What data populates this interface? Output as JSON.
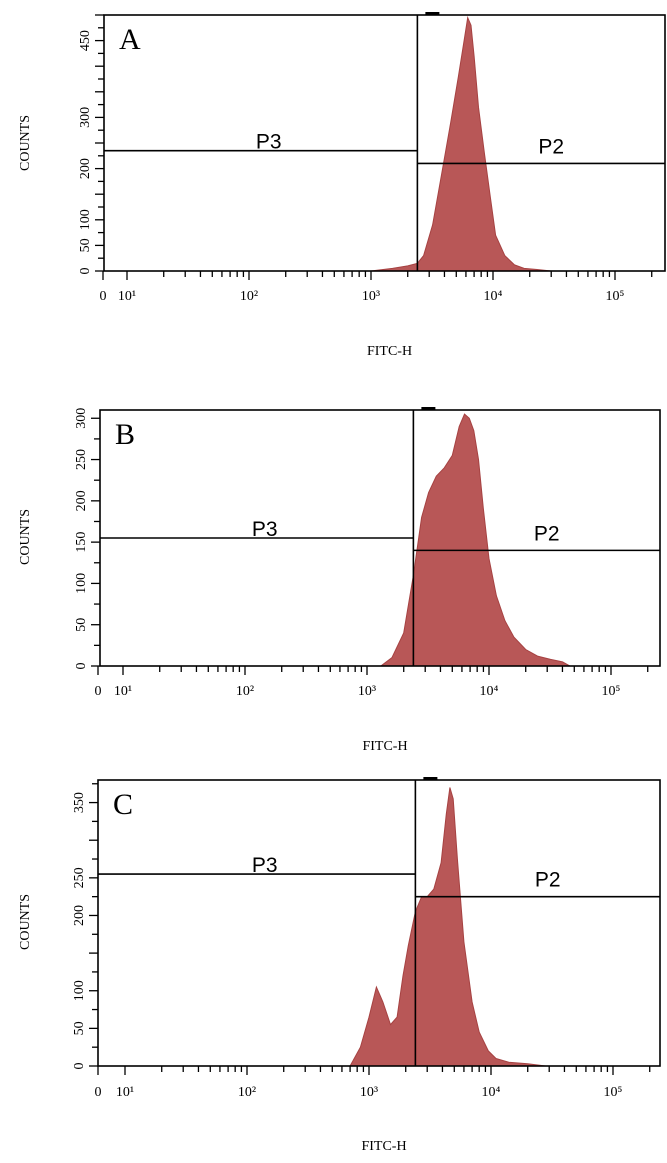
{
  "chart_data": [
    {
      "type": "area",
      "panel_letter": "A",
      "xlabel": "FITC-H",
      "ylabel": "COUNTS",
      "x_scale": "log",
      "x_tick_labels": [
        "0",
        "10¹",
        "10²",
        "10³",
        "10⁴",
        "10⁵"
      ],
      "y_tick_labels": [
        "0",
        "50",
        "100",
        "200",
        "300",
        "450"
      ],
      "ylim": [
        0,
        500
      ],
      "fill_color": "#b85757",
      "gates": [
        {
          "name": "P3",
          "level": 235
        },
        {
          "name": "P2",
          "level": 210
        }
      ],
      "gate_boundary": 2400,
      "histogram": {
        "x": [
          1000,
          1500,
          2000,
          2400,
          2700,
          3200,
          3800,
          4500,
          5200,
          5800,
          6200,
          6600,
          7000,
          7600,
          8500,
          9500,
          10500,
          12500,
          15000,
          18000,
          23000,
          30000
        ],
        "y": [
          0,
          5,
          10,
          15,
          30,
          90,
          190,
          290,
          380,
          450,
          495,
          480,
          420,
          320,
          230,
          145,
          70,
          30,
          12,
          5,
          3,
          0
        ]
      }
    },
    {
      "type": "area",
      "panel_letter": "B",
      "xlabel": "FITC-H",
      "ylabel": "COUNTS",
      "x_scale": "log",
      "x_tick_labels": [
        "0",
        "10¹",
        "10²",
        "10³",
        "10⁴",
        "10⁵"
      ],
      "y_tick_labels": [
        "0",
        "50",
        "100",
        "150",
        "200",
        "250",
        "300"
      ],
      "ylim": [
        0,
        310
      ],
      "fill_color": "#b85757",
      "gates": [
        {
          "name": "P3",
          "level": 155
        },
        {
          "name": "P2",
          "level": 140
        }
      ],
      "gate_boundary": 2400,
      "histogram": {
        "x": [
          1300,
          1600,
          2000,
          2400,
          2800,
          3200,
          3700,
          4300,
          5000,
          5700,
          6300,
          6900,
          7500,
          8200,
          9000,
          10000,
          11500,
          13500,
          16000,
          20000,
          25000,
          32000,
          40000,
          46000
        ],
        "y": [
          0,
          10,
          40,
          110,
          180,
          210,
          230,
          240,
          255,
          290,
          305,
          300,
          285,
          250,
          190,
          130,
          85,
          55,
          35,
          20,
          12,
          8,
          5,
          0
        ]
      }
    },
    {
      "type": "area",
      "panel_letter": "C",
      "xlabel": "FITC-H",
      "ylabel": "COUNTS",
      "x_scale": "log",
      "x_tick_labels": [
        "0",
        "10¹",
        "10²",
        "10³",
        "10⁴",
        "10⁵"
      ],
      "y_tick_labels": [
        "0",
        "50",
        "100",
        "200",
        "250",
        "350"
      ],
      "ylim": [
        0,
        380
      ],
      "fill_color": "#b85757",
      "gates": [
        {
          "name": "P3",
          "level": 255
        },
        {
          "name": "P2",
          "level": 225
        }
      ],
      "gate_boundary": 2400,
      "histogram": {
        "x": [
          700,
          850,
          1000,
          1150,
          1300,
          1500,
          1700,
          1900,
          2100,
          2400,
          2700,
          3000,
          3400,
          3900,
          4300,
          4600,
          4900,
          5300,
          6000,
          7000,
          8000,
          9500,
          11000,
          14000,
          20000,
          28000
        ],
        "y": [
          0,
          25,
          65,
          105,
          85,
          55,
          65,
          120,
          160,
          205,
          225,
          225,
          235,
          270,
          335,
          370,
          355,
          275,
          165,
          85,
          45,
          20,
          10,
          5,
          3,
          0
        ]
      }
    }
  ]
}
